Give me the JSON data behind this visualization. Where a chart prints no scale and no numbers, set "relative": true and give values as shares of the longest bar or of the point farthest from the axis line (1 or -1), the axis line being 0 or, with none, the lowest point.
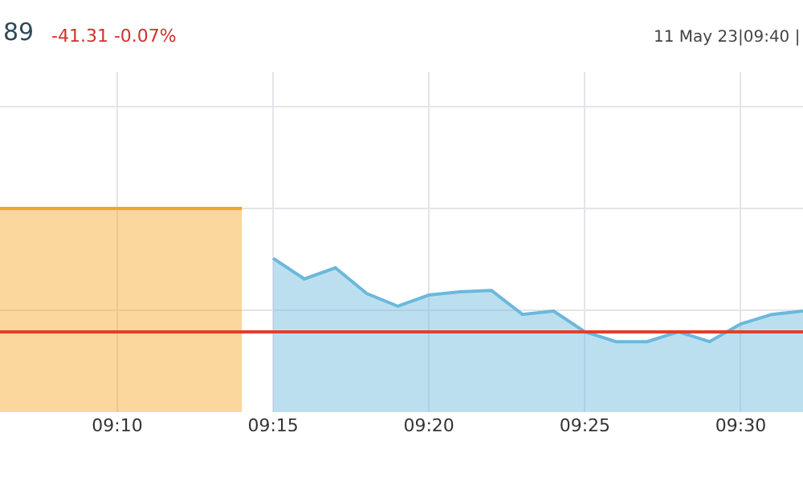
{
  "chart_data": {
    "type": "area",
    "relative": true,
    "annotations": [
      "89",
      "-41.31 -0.07%",
      "11 May 23|09:40 |"
    ],
    "xlim": [
      9.104,
      9.5333
    ],
    "xticks": [
      {
        "value": 9.1667,
        "label": "09:10"
      },
      {
        "value": 9.25,
        "label": "09:15"
      },
      {
        "value": 9.3333,
        "label": "09:20"
      },
      {
        "value": 9.4167,
        "label": "09:25"
      },
      {
        "value": 9.5,
        "label": "09:30"
      }
    ],
    "series": [
      {
        "color": "#f5a623",
        "x": [
          9.104,
          9.2333
        ],
        "values": [
          1,
          1
        ]
      },
      {
        "color": "#6bb8dc",
        "x": [
          9.25,
          9.2667,
          9.2833,
          9.3,
          9.3167,
          9.3333,
          9.35,
          9.3667,
          9.3833,
          9.4,
          9.4167,
          9.4333,
          9.45,
          9.4667,
          9.4833,
          9.5,
          9.5167,
          9.5333
        ],
        "values": [
          0.756,
          0.654,
          0.709,
          0.583,
          0.52,
          0.575,
          0.591,
          0.598,
          0.48,
          0.496,
          0.394,
          0.346,
          0.346,
          0.394,
          0.346,
          0.433,
          0.48,
          0.496
        ]
      }
    ],
    "ref_lines": [
      {
        "axis": "y",
        "value": 0.394,
        "color": "#e0402a"
      }
    ],
    "grid": true,
    "tick_labels": "x"
  }
}
